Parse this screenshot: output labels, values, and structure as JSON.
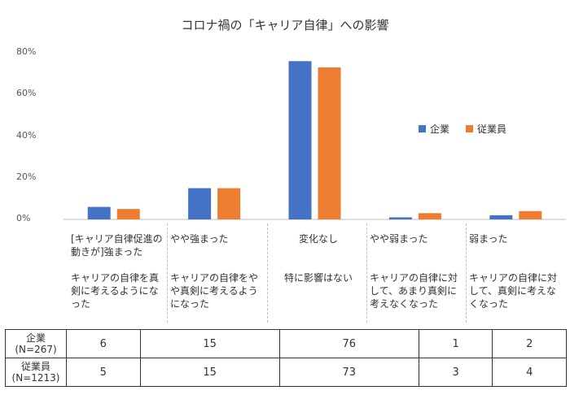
{
  "chart_data": {
    "type": "bar",
    "title": "コロナ禍の「キャリア自律」への影響",
    "ylim": [
      0,
      80
    ],
    "yticks": [
      "0%",
      "20%",
      "40%",
      "60%",
      "80%"
    ],
    "categories": [
      {
        "label": "[キャリア自律促進の動きが]強まった",
        "desc": "キャリアの自律を真剣に考えるようになった"
      },
      {
        "label": "やや強まった",
        "desc": "キャリアの自律をやや真剣に考えるようになった"
      },
      {
        "label": "変化なし",
        "desc": "特に影響はない"
      },
      {
        "label": "やや弱まった",
        "desc": "キャリアの自律に対して、あまり真剣に考えなくなった"
      },
      {
        "label": "弱まった",
        "desc": "キャリアの自律に対して、真剣に考えなくなった"
      }
    ],
    "series": [
      {
        "name": "企業",
        "table_label": "企業\n(N=267)",
        "color": "#4472C4",
        "values": [
          6,
          15,
          76,
          1,
          2
        ]
      },
      {
        "name": "従業員",
        "table_label": "従業員\n(N=1213)",
        "color": "#ED7D31",
        "values": [
          5,
          15,
          73,
          3,
          4
        ]
      }
    ],
    "grid": false,
    "legend_position": "right"
  }
}
